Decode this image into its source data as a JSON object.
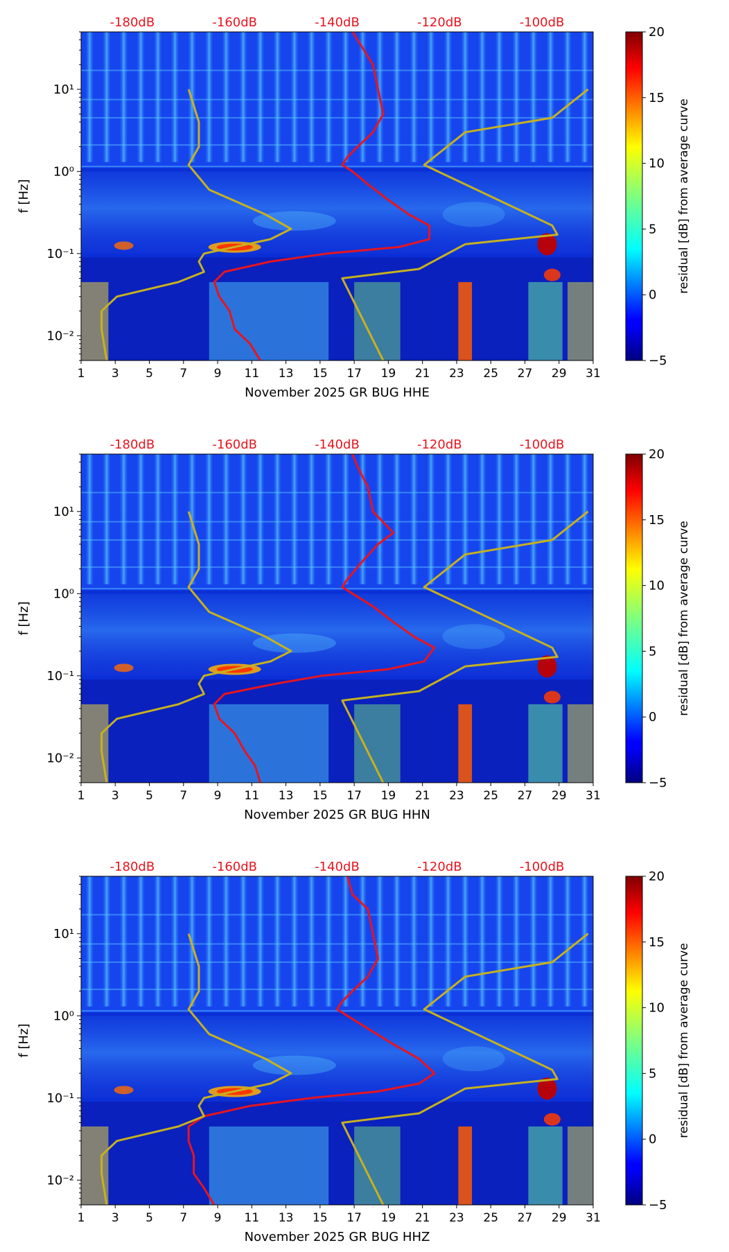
{
  "chart_data": [
    {
      "type": "heatmap",
      "title": "",
      "xlabel": "November 2025 GR BUG  HHE",
      "ylabel": "f [Hz]",
      "x_ticks": [
        "1",
        "3",
        "5",
        "7",
        "9",
        "11",
        "13",
        "15",
        "17",
        "19",
        "21",
        "23",
        "25",
        "27",
        "29",
        "31"
      ],
      "x_range": [
        1,
        31
      ],
      "y_ticks": [
        "10⁻²",
        "10⁻¹",
        "10⁰",
        "10¹"
      ],
      "y_range_hz": [
        0.005,
        50
      ],
      "top_axis_labels": [
        "-180dB",
        "-160dB",
        "-140dB",
        "-120dB",
        "-100dB"
      ],
      "top_axis_range_db": [
        -190,
        -90
      ],
      "colorbar": {
        "label": "residual [dB] from average curve",
        "ticks": [
          "20",
          "15",
          "10",
          "5",
          "0",
          "−5"
        ],
        "range": [
          -5,
          20
        ]
      },
      "series": [
        {
          "name": "mean PSD",
          "color": "#e8141e",
          "points": [
            [
              -137,
              50
            ],
            [
              -136,
              40
            ],
            [
              -133,
              20
            ],
            [
              -132,
              10
            ],
            [
              -131,
              5
            ],
            [
              -133,
              3
            ],
            [
              -136,
              2
            ],
            [
              -138,
              1.5
            ],
            [
              -139,
              1.2
            ],
            [
              -137,
              1
            ],
            [
              -134,
              0.7
            ],
            [
              -130,
              0.45
            ],
            [
              -126,
              0.3
            ],
            [
              -122,
              0.22
            ],
            [
              -122,
              0.15
            ],
            [
              -128,
              0.12
            ],
            [
              -142,
              0.1
            ],
            [
              -153,
              0.08
            ],
            [
              -162,
              0.06
            ],
            [
              -164,
              0.045
            ],
            [
              -163,
              0.03
            ],
            [
              -161,
              0.02
            ],
            [
              -160,
              0.012
            ],
            [
              -157,
              0.008
            ],
            [
              -155,
              0.005
            ]
          ]
        },
        {
          "name": "NLNM",
          "color": "#c7b11f",
          "points": [
            [
              -185,
              0.005
            ],
            [
              -186,
              0.012
            ],
            [
              -186,
              0.02
            ],
            [
              -183,
              0.03
            ],
            [
              -171,
              0.045
            ],
            [
              -166,
              0.06
            ],
            [
              -167,
              0.08
            ],
            [
              -166,
              0.1
            ],
            [
              -153,
              0.15
            ],
            [
              -149,
              0.2
            ],
            [
              -154,
              0.3
            ],
            [
              -165,
              0.6
            ],
            [
              -169,
              1.2
            ],
            [
              -167,
              2
            ],
            [
              -167,
              4
            ],
            [
              -169,
              10
            ]
          ]
        },
        {
          "name": "NHNM",
          "color": "#c7b11f",
          "points": [
            [
              -131,
              0.005
            ],
            [
              -139,
              0.05
            ],
            [
              -124,
              0.065
            ],
            [
              -115,
              0.13
            ],
            [
              -97,
              0.17
            ],
            [
              -98,
              0.22
            ],
            [
              -123,
              1.2
            ],
            [
              -115,
              3
            ],
            [
              -98,
              4.5
            ],
            [
              -91,
              10
            ]
          ]
        }
      ]
    },
    {
      "type": "heatmap",
      "title": "",
      "xlabel": "November 2025 GR BUG  HHN",
      "ylabel": "f [Hz]",
      "x_ticks": [
        "1",
        "3",
        "5",
        "7",
        "9",
        "11",
        "13",
        "15",
        "17",
        "19",
        "21",
        "23",
        "25",
        "27",
        "29",
        "31"
      ],
      "x_range": [
        1,
        31
      ],
      "y_ticks": [
        "10⁻²",
        "10⁻¹",
        "10⁰",
        "10¹"
      ],
      "y_range_hz": [
        0.005,
        50
      ],
      "top_axis_labels": [
        "-180dB",
        "-160dB",
        "-140dB",
        "-120dB",
        "-100dB"
      ],
      "top_axis_range_db": [
        -190,
        -90
      ],
      "colorbar": {
        "label": "residual [dB] from average curve",
        "ticks": [
          "20",
          "15",
          "10",
          "5",
          "0",
          "−5"
        ],
        "range": [
          -5,
          20
        ]
      },
      "series": [
        {
          "name": "mean PSD",
          "color": "#e8141e",
          "points": [
            [
              -137,
              50
            ],
            [
              -136,
              35
            ],
            [
              -134,
              20
            ],
            [
              -133,
              10
            ],
            [
              -129,
              5.5
            ],
            [
              -132,
              4
            ],
            [
              -135,
              2.5
            ],
            [
              -138,
              1.5
            ],
            [
              -139,
              1.2
            ],
            [
              -137,
              1
            ],
            [
              -133,
              0.7
            ],
            [
              -129,
              0.45
            ],
            [
              -125,
              0.3
            ],
            [
              -121,
              0.22
            ],
            [
              -123,
              0.15
            ],
            [
              -130,
              0.12
            ],
            [
              -143,
              0.1
            ],
            [
              -152,
              0.08
            ],
            [
              -162,
              0.06
            ],
            [
              -164,
              0.045
            ],
            [
              -163,
              0.03
            ],
            [
              -160,
              0.02
            ],
            [
              -158,
              0.012
            ],
            [
              -156,
              0.008
            ],
            [
              -155,
              0.005
            ]
          ]
        },
        {
          "name": "NLNM",
          "color": "#c7b11f",
          "points": [
            [
              -185,
              0.005
            ],
            [
              -186,
              0.012
            ],
            [
              -186,
              0.02
            ],
            [
              -183,
              0.03
            ],
            [
              -171,
              0.045
            ],
            [
              -166,
              0.06
            ],
            [
              -167,
              0.08
            ],
            [
              -166,
              0.1
            ],
            [
              -153,
              0.15
            ],
            [
              -149,
              0.2
            ],
            [
              -154,
              0.3
            ],
            [
              -165,
              0.6
            ],
            [
              -169,
              1.2
            ],
            [
              -167,
              2
            ],
            [
              -167,
              4
            ],
            [
              -169,
              10
            ]
          ]
        },
        {
          "name": "NHNM",
          "color": "#c7b11f",
          "points": [
            [
              -131,
              0.005
            ],
            [
              -139,
              0.05
            ],
            [
              -124,
              0.065
            ],
            [
              -115,
              0.13
            ],
            [
              -97,
              0.17
            ],
            [
              -98,
              0.22
            ],
            [
              -123,
              1.2
            ],
            [
              -115,
              3
            ],
            [
              -98,
              4.5
            ],
            [
              -91,
              10
            ]
          ]
        }
      ]
    },
    {
      "type": "heatmap",
      "title": "",
      "xlabel": "November 2025 GR BUG  HHZ",
      "ylabel": "f [Hz]",
      "x_ticks": [
        "1",
        "3",
        "5",
        "7",
        "9",
        "11",
        "13",
        "15",
        "17",
        "19",
        "21",
        "23",
        "25",
        "27",
        "29",
        "31"
      ],
      "x_range": [
        1,
        31
      ],
      "y_ticks": [
        "10⁻²",
        "10⁻¹",
        "10⁰",
        "10¹"
      ],
      "y_range_hz": [
        0.005,
        50
      ],
      "top_axis_labels": [
        "-180dB",
        "-160dB",
        "-140dB",
        "-120dB",
        "-100dB"
      ],
      "top_axis_range_db": [
        -190,
        -90
      ],
      "colorbar": {
        "label": "residual [dB] from average curve",
        "ticks": [
          "20",
          "15",
          "10",
          "5",
          "0",
          "−5"
        ],
        "range": [
          -5,
          20
        ]
      },
      "series": [
        {
          "name": "mean PSD",
          "color": "#e8141e",
          "points": [
            [
              -138,
              50
            ],
            [
              -137,
              30
            ],
            [
              -134,
              20
            ],
            [
              -133,
              10
            ],
            [
              -132,
              5
            ],
            [
              -134,
              3
            ],
            [
              -137,
              2
            ],
            [
              -139,
              1.5
            ],
            [
              -140,
              1.2
            ],
            [
              -138,
              1
            ],
            [
              -134,
              0.7
            ],
            [
              -129,
              0.45
            ],
            [
              -124,
              0.3
            ],
            [
              -121,
              0.2
            ],
            [
              -124,
              0.15
            ],
            [
              -132,
              0.12
            ],
            [
              -145,
              0.1
            ],
            [
              -157,
              0.08
            ],
            [
              -166,
              0.06
            ],
            [
              -169,
              0.045
            ],
            [
              -169,
              0.03
            ],
            [
              -168,
              0.02
            ],
            [
              -168,
              0.012
            ],
            [
              -166,
              0.008
            ],
            [
              -164,
              0.005
            ]
          ]
        },
        {
          "name": "NLNM",
          "color": "#c7b11f",
          "points": [
            [
              -185,
              0.005
            ],
            [
              -186,
              0.012
            ],
            [
              -186,
              0.02
            ],
            [
              -183,
              0.03
            ],
            [
              -171,
              0.045
            ],
            [
              -166,
              0.06
            ],
            [
              -167,
              0.08
            ],
            [
              -166,
              0.1
            ],
            [
              -153,
              0.15
            ],
            [
              -149,
              0.2
            ],
            [
              -154,
              0.3
            ],
            [
              -165,
              0.6
            ],
            [
              -169,
              1.2
            ],
            [
              -167,
              2
            ],
            [
              -167,
              4
            ],
            [
              -169,
              10
            ]
          ]
        },
        {
          "name": "NHNM",
          "color": "#c7b11f",
          "points": [
            [
              -131,
              0.005
            ],
            [
              -139,
              0.05
            ],
            [
              -124,
              0.065
            ],
            [
              -115,
              0.13
            ],
            [
              -97,
              0.17
            ],
            [
              -98,
              0.22
            ],
            [
              -123,
              1.2
            ],
            [
              -115,
              3
            ],
            [
              -98,
              4.5
            ],
            [
              -91,
              10
            ]
          ]
        }
      ]
    }
  ]
}
